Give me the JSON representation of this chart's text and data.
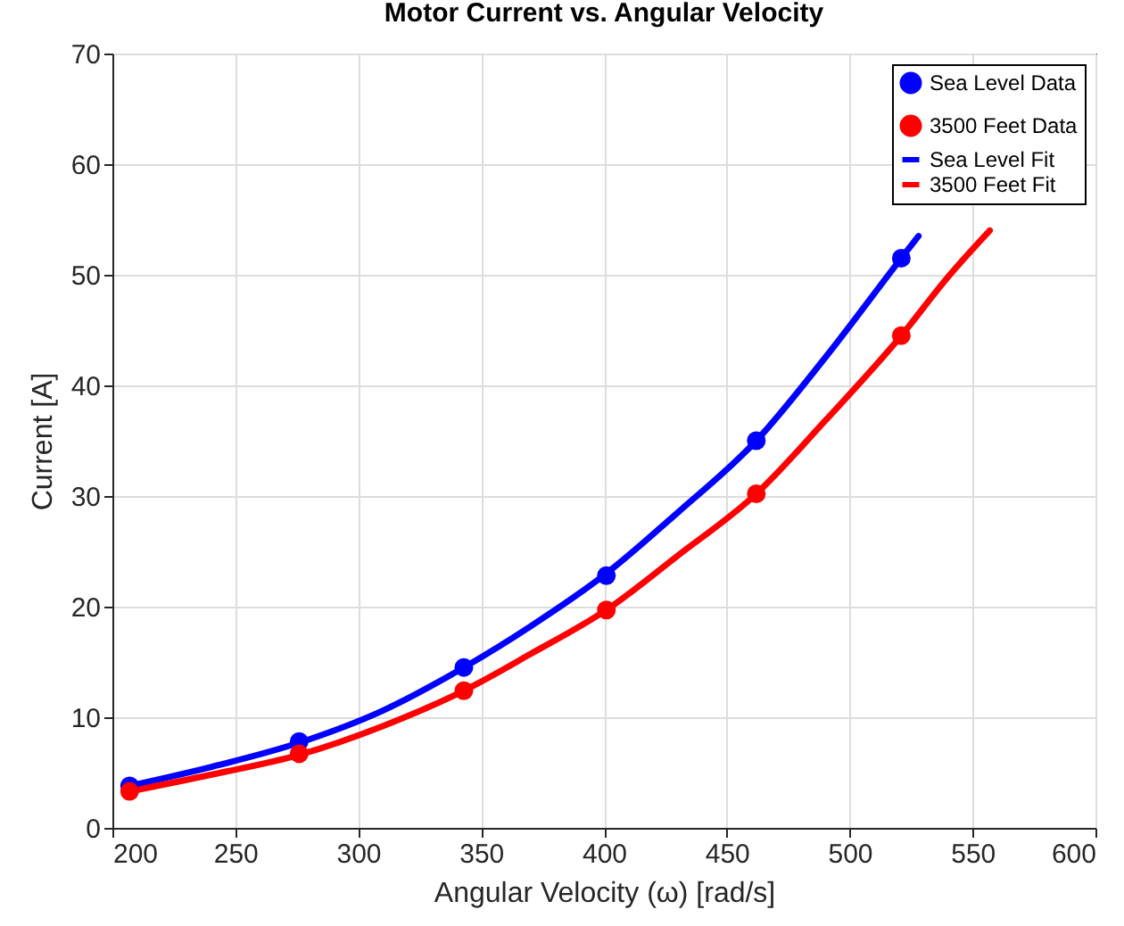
{
  "chart_data": {
    "type": "scatter",
    "title": "Motor Current vs. Angular Velocity",
    "xlabel": "Angular Velocity (ω) [rad/s]",
    "ylabel": "Current [A]",
    "xlim": [
      200,
      600
    ],
    "xticks": [
      200,
      250,
      300,
      350,
      400,
      450,
      500,
      550,
      600
    ],
    "ylim": [
      0,
      70
    ],
    "yticks": [
      0,
      10,
      20,
      30,
      40,
      50,
      60,
      70
    ],
    "grid": true,
    "legend": "top right",
    "series": [
      {
        "name": "Sea Level Data",
        "marker": "circle",
        "color": "#0000ff",
        "x": [
          207,
          276,
          343,
          401,
          462,
          521
        ],
        "values": [
          3.8,
          7.8,
          14.5,
          22.8,
          35,
          51.5
        ]
      },
      {
        "name": "3500 Feet Data",
        "marker": "circle",
        "color": "#ff0000",
        "x": [
          207,
          276,
          343,
          401,
          462,
          521
        ],
        "values": [
          3.3,
          6.7,
          12.4,
          19.7,
          30.2,
          44.5
        ]
      },
      {
        "name": "Sea Level Fit",
        "type": "line",
        "color": "#0000ff",
        "x": [
          207,
          240,
          276,
          310,
          343,
          370,
          401,
          430,
          462,
          490,
          521,
          528
        ],
        "values": [
          3.8,
          5.5,
          7.7,
          10.6,
          14.5,
          18.2,
          23,
          28.5,
          35,
          42.5,
          51.5,
          53.5
        ]
      },
      {
        "name": "3500 Feet Fit",
        "type": "line",
        "color": "#ff0000",
        "x": [
          207,
          240,
          276,
          310,
          343,
          370,
          401,
          430,
          462,
          490,
          521,
          540,
          557
        ],
        "values": [
          3.3,
          4.8,
          6.6,
          9.2,
          12.4,
          15.7,
          19.7,
          24.6,
          30.2,
          36.8,
          44.5,
          49.8,
          54
        ]
      }
    ]
  }
}
